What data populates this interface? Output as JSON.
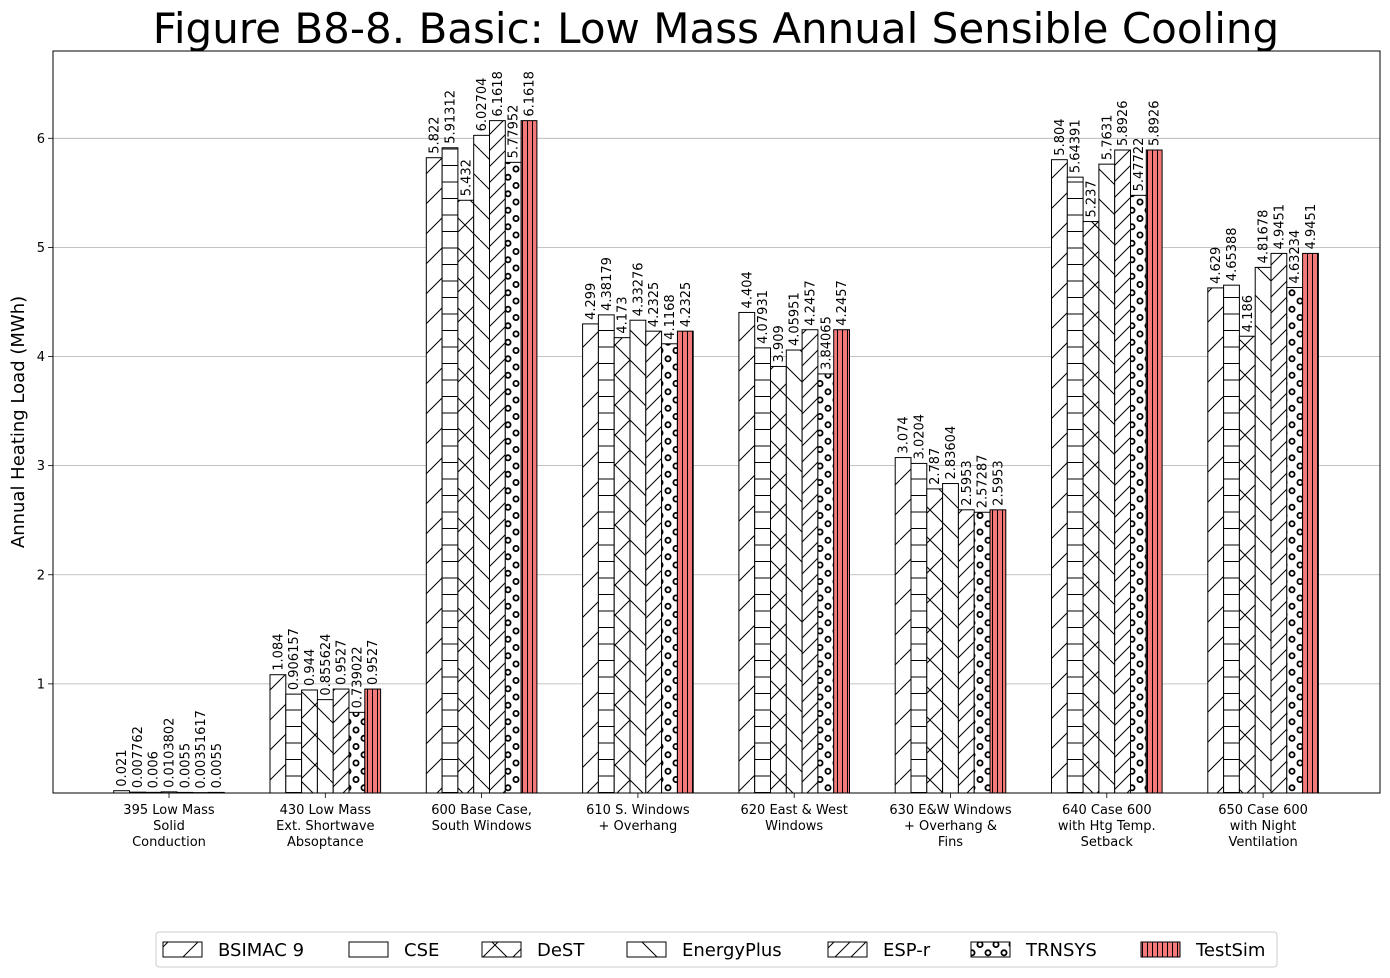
{
  "chart_data": {
    "type": "bar",
    "title": "Figure B8-8.  Basic: Low Mass Annual Sensible Cooling",
    "xlabel": "",
    "ylabel": "Annual Heating Load (MWh)",
    "ylim": [
      0,
      6.8
    ],
    "yticks": [
      "1",
      "2",
      "3",
      "4",
      "5",
      "6"
    ],
    "grid": "horizontal",
    "legend_position": "bottom-center",
    "categories": [
      [
        "395 Low Mass",
        "Solid",
        "Conduction"
      ],
      [
        "430 Low Mass",
        "Ext. Shortwave",
        "Absoptance"
      ],
      [
        "600 Base Case,",
        "South Windows"
      ],
      [
        "610 S. Windows",
        "+ Overhang"
      ],
      [
        "620 East & West",
        "Windows"
      ],
      [
        "630 E&W Windows",
        "+ Overhang &",
        "Fins"
      ],
      [
        "640 Case 600",
        "with Htg Temp.",
        "Setback"
      ],
      [
        "650 Case 600",
        "with Night",
        "Ventilation"
      ]
    ],
    "series": [
      {
        "name": "BSIMAC 9",
        "pattern": "diag-fwd",
        "color": "#ffffff",
        "values": [
          0.021,
          1.084,
          5.822,
          4.299,
          4.404,
          3.074,
          5.804,
          4.629
        ],
        "labels": [
          "0.021",
          "1.084",
          "5.822",
          "4.299",
          "4.404",
          "3.074",
          "5.804",
          "4.629"
        ]
      },
      {
        "name": "CSE",
        "pattern": "horizontal",
        "color": "#ffffff",
        "values": [
          0.007762,
          0.906157,
          5.91312,
          4.38179,
          4.07931,
          3.0204,
          5.64391,
          4.65388
        ],
        "labels": [
          "0.007762",
          "0.906157",
          "5.91312",
          "4.38179",
          "4.07931",
          "3.0204",
          "5.64391",
          "4.65388"
        ]
      },
      {
        "name": "DeST",
        "pattern": "cross",
        "color": "#ffffff",
        "values": [
          0.006,
          0.944,
          5.432,
          4.173,
          3.909,
          2.787,
          5.237,
          4.186
        ],
        "labels": [
          "0.006",
          "0.944",
          "5.432",
          "4.173",
          "3.909",
          "2.787",
          "5.237",
          "4.186"
        ]
      },
      {
        "name": "EnergyPlus",
        "pattern": "diag-back",
        "color": "#ffffff",
        "values": [
          0.0103802,
          0.855624,
          6.02704,
          4.33276,
          4.05951,
          2.83604,
          5.7631,
          4.81678
        ],
        "labels": [
          "0.0103802",
          "0.855624",
          "6.02704",
          "4.33276",
          "4.05951",
          "2.83604",
          "5.7631",
          "4.81678"
        ]
      },
      {
        "name": "ESP-r",
        "pattern": "diag-dense",
        "color": "#ffffff",
        "values": [
          0.0055,
          0.9527,
          6.1618,
          4.2325,
          4.2457,
          2.5953,
          5.8926,
          4.9451
        ],
        "labels": [
          "0.0055",
          "0.9527",
          "6.1618",
          "4.2325",
          "4.2457",
          "2.5953",
          "5.8926",
          "4.9451"
        ]
      },
      {
        "name": "TRNSYS",
        "pattern": "circles",
        "color": "#ffffff",
        "values": [
          0.00351617,
          0.739022,
          5.77952,
          4.1168,
          3.84065,
          2.57287,
          5.47722,
          4.63234
        ],
        "labels": [
          "0.00351617",
          "0.739022",
          "5.77952",
          "4.1168",
          "3.84065",
          "2.57287",
          "5.47722",
          "4.63234"
        ]
      },
      {
        "name": "TestSim",
        "pattern": "vertical",
        "color": "#f47a7a",
        "values": [
          0.0055,
          0.9527,
          6.1618,
          4.2325,
          4.2457,
          2.5953,
          5.8926,
          4.9451
        ],
        "labels": [
          "0.0055",
          "0.9527",
          "6.1618",
          "4.2325",
          "4.2457",
          "2.5953",
          "5.8926",
          "4.9451"
        ]
      }
    ]
  }
}
